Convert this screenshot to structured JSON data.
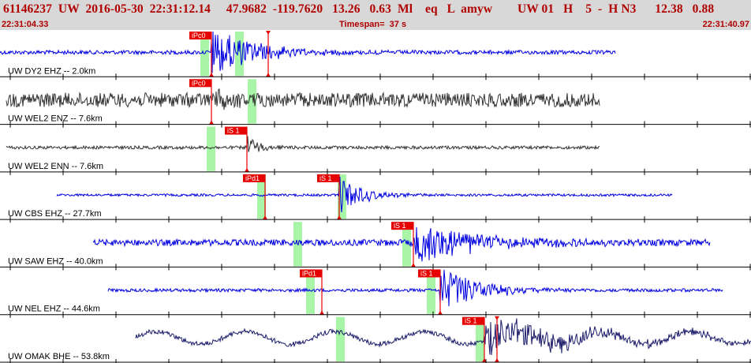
{
  "header": {
    "event_line": "61146237  UW  2016-05-30  22:31:12.14     47.9682  -119.7620   13.26   0.63  Ml    eq   L  amyw        UW 01   H    5  -  H N3      12.38   0.88",
    "start_time": "22:31:04.33",
    "timespan_label": "Timespan=  37 s",
    "end_time": "22:31:40.97"
  },
  "colors": {
    "header_bg": "#d8d8d8",
    "header_text": "#b00000",
    "trace_blue": "#0000e0",
    "trace_dark": "#333333",
    "trace_navy": "#1c1c6c",
    "pick_box": "#e60000",
    "window_highlight": "#a8f5a8"
  },
  "traces": [
    {
      "label": "UW DY2 EHZ --  2.0km",
      "color": "#0000e0",
      "start_x": 0,
      "end_x": 780,
      "amp": 4,
      "noise_amp": 2.5,
      "burst_x": 268,
      "burst_amp": 32,
      "decay": 0.018,
      "highlights": [
        254,
        298
      ],
      "picks": [
        {
          "label": "iPc0",
          "x": 268
        },
        {
          "label": "",
          "x": 340,
          "marker": true
        }
      ]
    },
    {
      "label": "UW WEL2 ENZ --  7.6km",
      "color": "#333333",
      "start_x": 8,
      "end_x": 760,
      "amp": 10,
      "noise_amp": 9,
      "burst_x": 268,
      "burst_amp": 18,
      "decay": 0.06,
      "highlights": [
        314
      ],
      "picks": [
        {
          "label": "iPc0",
          "x": 268
        }
      ]
    },
    {
      "label": "UW WEL2 ENN --  7.6km",
      "color": "#333333",
      "start_x": 8,
      "end_x": 760,
      "amp": 3,
      "noise_amp": 2,
      "burst_x": 313,
      "burst_amp": 18,
      "decay": 0.06,
      "highlights": [
        262
      ],
      "picks": [
        {
          "label": "iS 1",
          "x": 313
        }
      ]
    },
    {
      "label": "UW CBS EHZ --  27.7km",
      "color": "#0000e0",
      "start_x": 72,
      "end_x": 852,
      "amp": 2,
      "noise_amp": 1.5,
      "burst_x": 430,
      "burst_amp": 26,
      "decay": 0.035,
      "highlights": [
        326,
        428
      ],
      "picks": [
        {
          "label": "iPd1",
          "x": 336
        },
        {
          "label": "iS 1",
          "x": 430
        }
      ]
    },
    {
      "label": "UW SAW EHZ --  40.0km",
      "color": "#0000e0",
      "start_x": 118,
      "end_x": 900,
      "amp": 5,
      "noise_amp": 4,
      "burst_x": 524,
      "burst_amp": 26,
      "decay": 0.012,
      "highlights": [
        372,
        510
      ],
      "picks": [
        {
          "label": "iS 1",
          "x": 524
        }
      ]
    },
    {
      "label": "UW NEL EHZ --  44.6km",
      "color": "#0000e0",
      "start_x": 137,
      "end_x": 916,
      "amp": 3,
      "noise_amp": 2,
      "burst_x": 558,
      "burst_amp": 30,
      "decay": 0.02,
      "highlights": [
        388,
        541
      ],
      "picks": [
        {
          "label": "iPd1",
          "x": 408
        },
        {
          "label": "iS 1",
          "x": 558
        }
      ]
    },
    {
      "label": "UW OMAK BHE --  53.8km",
      "color": "#1c1c6c",
      "start_x": 172,
      "end_x": 952,
      "amp": 8,
      "noise_amp": 3,
      "burst_x": 614,
      "burst_amp": 22,
      "decay": 0.008,
      "highlights": [
        426,
        603
      ],
      "picks": [
        {
          "label": "iS 1",
          "x": 614
        },
        {
          "label": "",
          "x": 630,
          "marker": true
        }
      ]
    }
  ]
}
